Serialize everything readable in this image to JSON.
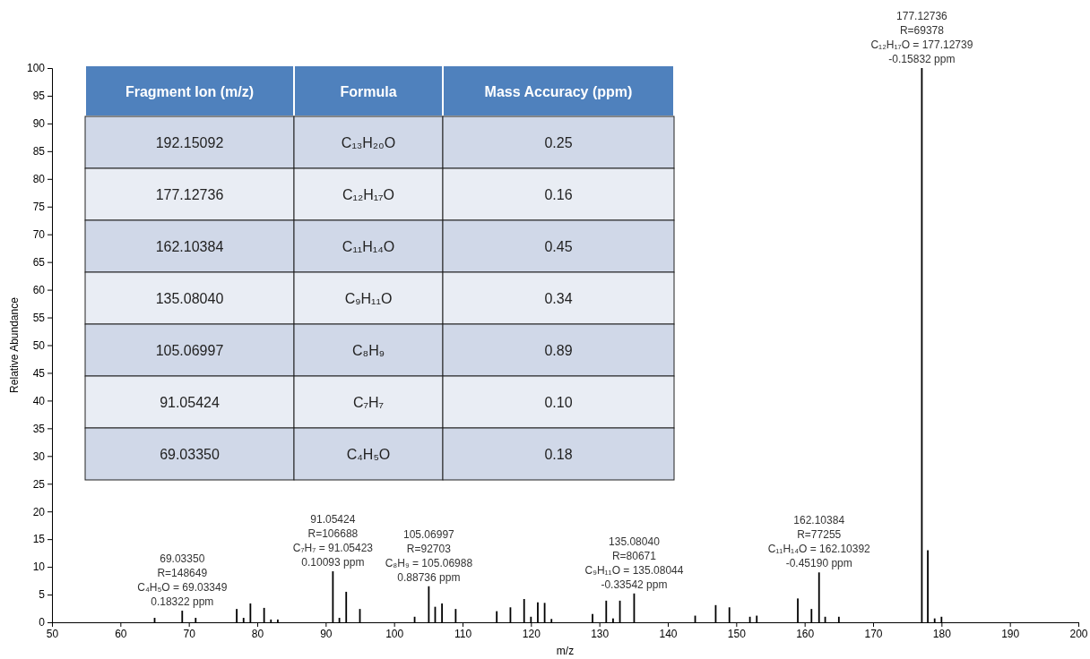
{
  "chart_data": [
    {
      "type": "bar",
      "xlabel": "m/z",
      "ylabel": "Relative Abundance",
      "color": "#000000",
      "x": [
        65,
        69.0335,
        71,
        77,
        78,
        79,
        81,
        82,
        83,
        91.05424,
        92,
        93,
        95,
        103,
        105.06997,
        106,
        107,
        109,
        115,
        117,
        119,
        120,
        121,
        122,
        123,
        129,
        131,
        132,
        133,
        135.0804,
        144,
        147,
        149,
        152,
        153,
        159,
        161,
        162.10384,
        163,
        165,
        177.12736,
        178,
        179,
        180
      ],
      "values": [
        0.8,
        2.1,
        0.8,
        2.4,
        0.8,
        3.4,
        2.6,
        0.5,
        0.5,
        9.2,
        0.8,
        5.5,
        2.4,
        1.0,
        6.5,
        2.8,
        3.4,
        2.4,
        2.0,
        2.7,
        4.2,
        1.0,
        3.6,
        3.5,
        0.6,
        1.5,
        3.9,
        0.7,
        3.9,
        5.2,
        1.2,
        3.1,
        2.7,
        1.0,
        1.2,
        4.3,
        2.4,
        9.0,
        1.0,
        1.0,
        100,
        13.0,
        0.7,
        1.0
      ],
      "xlim": [
        50,
        200
      ],
      "xticks": [
        50,
        60,
        70,
        80,
        90,
        100,
        110,
        120,
        130,
        140,
        150,
        160,
        170,
        180,
        190,
        200
      ],
      "ylim": [
        0,
        100
      ],
      "yticks": [
        0,
        5,
        10,
        15,
        20,
        25,
        30,
        35,
        40,
        45,
        50,
        55,
        60,
        65,
        70,
        75,
        80,
        85,
        90,
        95,
        100
      ],
      "annotations": [
        {
          "text": "69.03350\nR=148649\nC₄H₅O = 69.03349\n0.18322 ppm",
          "x": 69.0335,
          "y": 2.1
        },
        {
          "text": "91.05424\nR=106688\nC₇H₇ = 91.05423\n0.10093 ppm",
          "x": 91.05424,
          "y": 9.2
        },
        {
          "text": "105.06997\nR=92703\nC₈H₉ = 105.06988\n0.88736 ppm",
          "x": 105.06997,
          "y": 6.5
        },
        {
          "text": "135.08040\nR=80671\nC₉H₁₁O = 135.08044\n-0.33542 ppm",
          "x": 135.0804,
          "y": 5.2
        },
        {
          "text": "162.10384\nR=77255\nC₁₁H₁₄O = 162.10392\n-0.45190 ppm",
          "x": 162.10384,
          "y": 9.0
        },
        {
          "text": "177.12736\nR=69378\nC₁₂H₁₇O = 177.12739\n-0.15832 ppm",
          "x": 177.12736,
          "y": 100
        }
      ]
    },
    {
      "type": "other",
      "annotations": [
        "Fragment Ion (m/z)",
        "Formula",
        "Mass Accuracy (ppm)",
        "192.15092",
        "C₁₃H₂₀O",
        "0.25",
        "177.12736",
        "C₁₂H₁₇O",
        "0.16",
        "162.10384",
        "C₁₁H₁₄O",
        "0.45",
        "135.08040",
        "C₉H₁₁O",
        "0.34",
        "105.06997",
        "C₈H₉",
        "0.89",
        "91.05424",
        "C₇H₇",
        "0.10",
        "69.03350",
        "C₄H₅O",
        "0.18"
      ]
    }
  ]
}
